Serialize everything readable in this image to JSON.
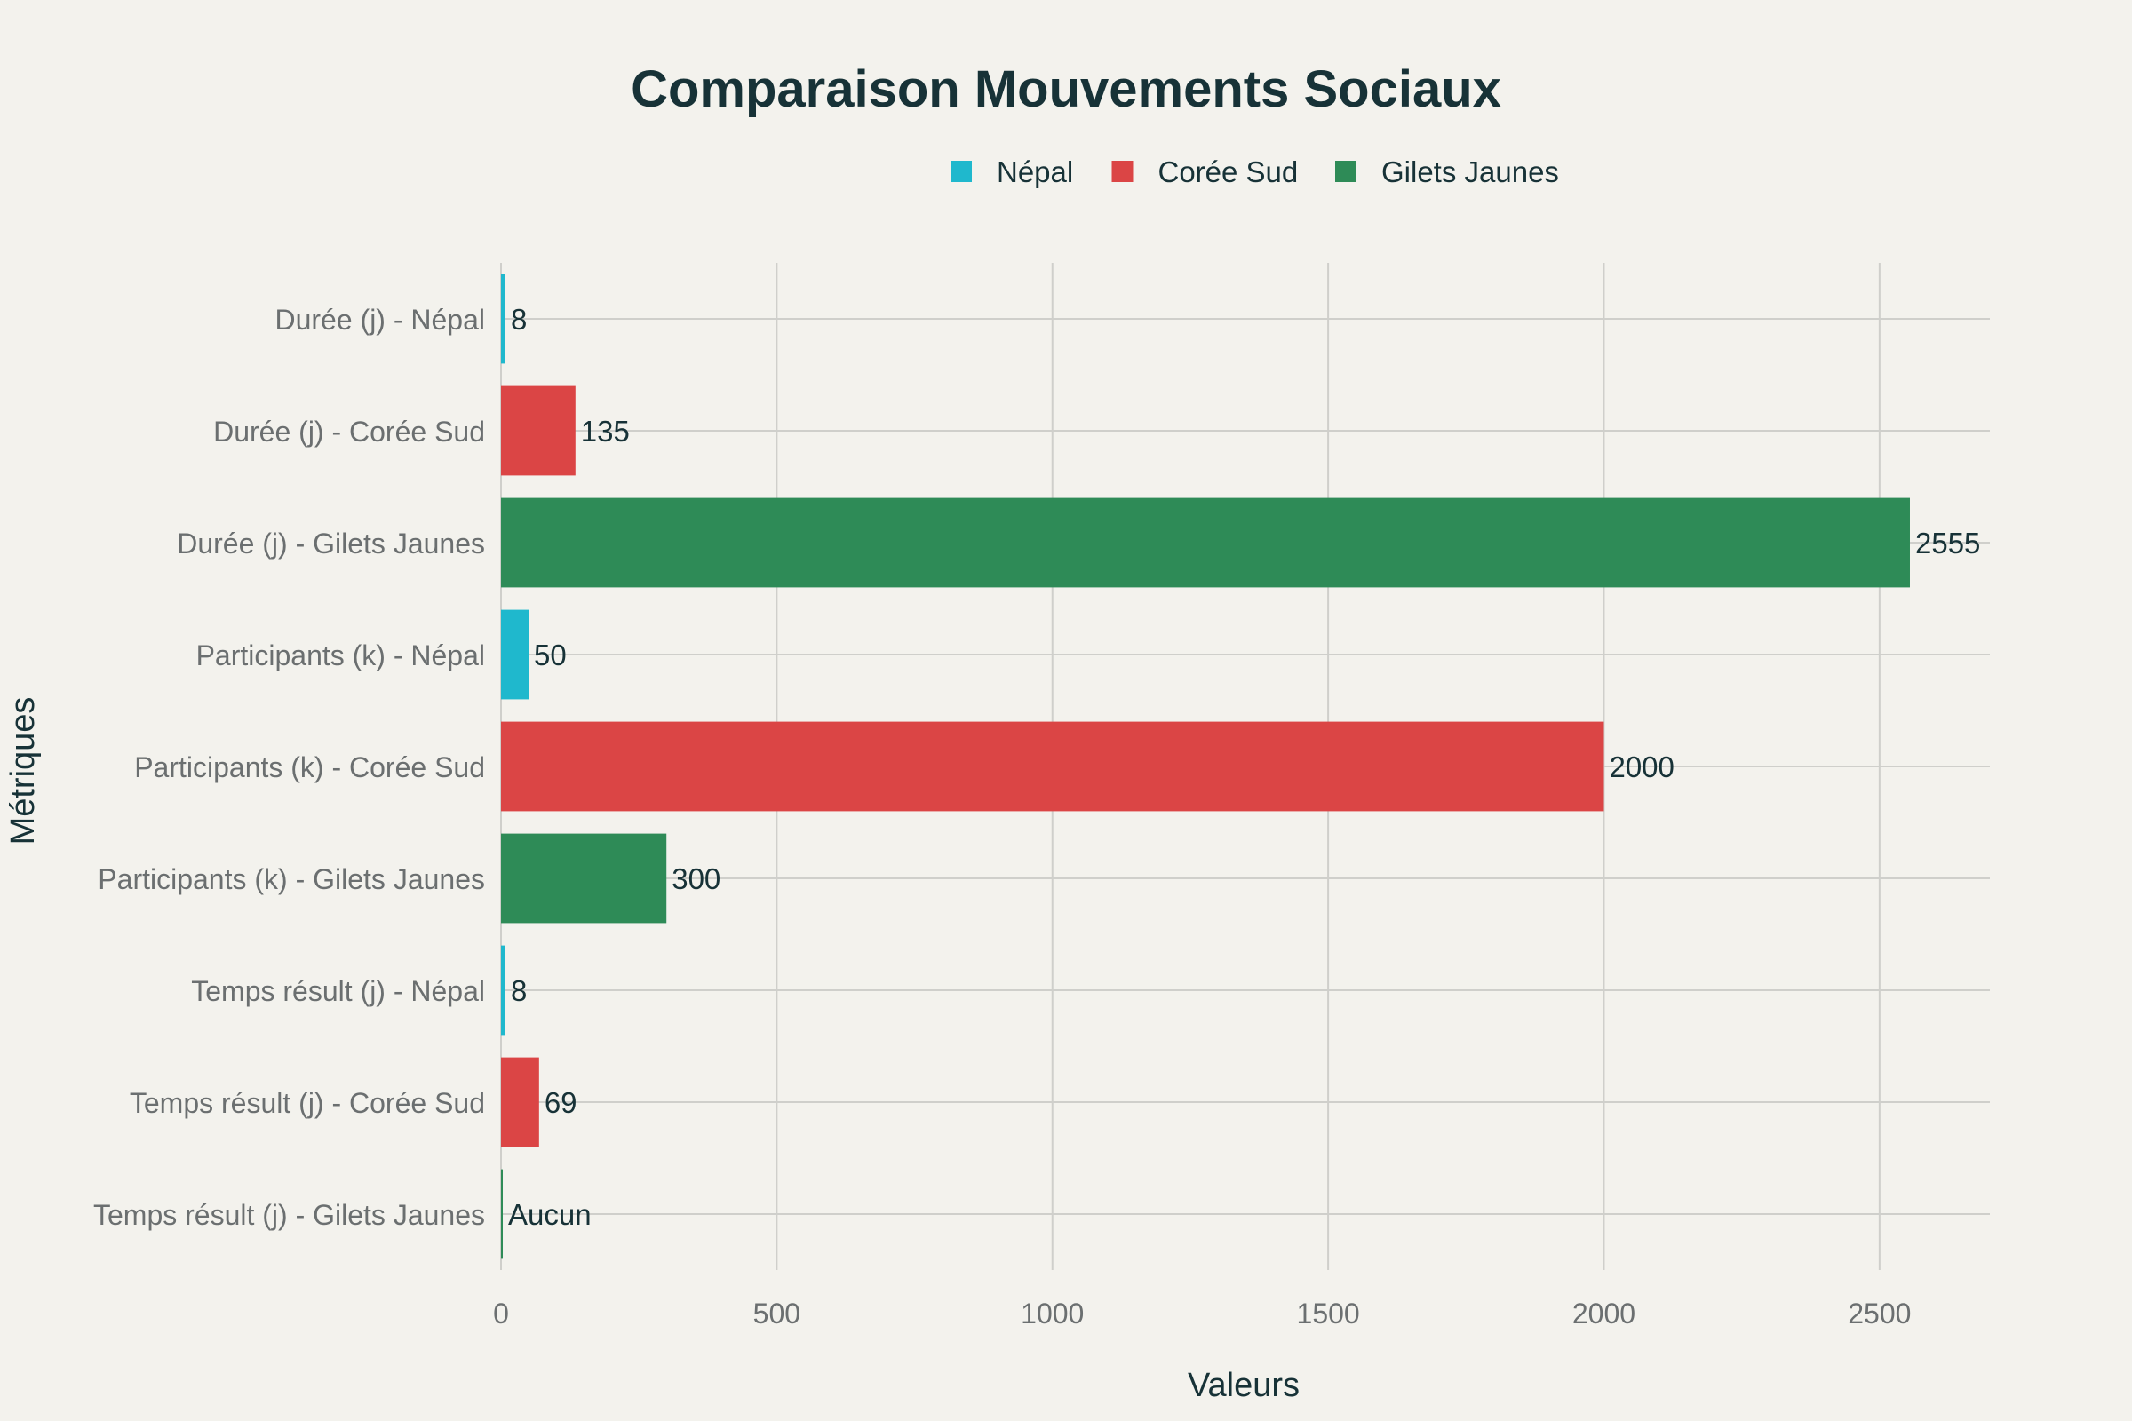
{
  "chart_data": {
    "type": "bar",
    "orientation": "horizontal",
    "title": "Comparaison Mouvements Sociaux",
    "xlabel": "Valeurs",
    "ylabel": "Métriques",
    "xlim": [
      0,
      2700
    ],
    "x_ticks": [
      0,
      500,
      1000,
      1500,
      2000,
      2500
    ],
    "grid": true,
    "legend_position": "top",
    "legend": [
      {
        "name": "Népal",
        "color": "#1fb8cd"
      },
      {
        "name": "Corée Sud",
        "color": "#db4545"
      },
      {
        "name": "Gilets Jaunes",
        "color": "#2e8b57"
      }
    ],
    "bars": [
      {
        "category": "Durée (j) - Népal",
        "series": "Népal",
        "value": 8,
        "label": "8"
      },
      {
        "category": "Durée (j) - Corée Sud",
        "series": "Corée Sud",
        "value": 135,
        "label": "135"
      },
      {
        "category": "Durée (j) - Gilets Jaunes",
        "series": "Gilets Jaunes",
        "value": 2555,
        "label": "2555"
      },
      {
        "category": "Participants (k) - Népal",
        "series": "Népal",
        "value": 50,
        "label": "50"
      },
      {
        "category": "Participants (k) - Corée Sud",
        "series": "Corée Sud",
        "value": 2000,
        "label": "2000"
      },
      {
        "category": "Participants (k) - Gilets Jaunes",
        "series": "Gilets Jaunes",
        "value": 300,
        "label": "300"
      },
      {
        "category": "Temps résult (j) - Népal",
        "series": "Népal",
        "value": 8,
        "label": "8"
      },
      {
        "category": "Temps résult (j) - Corée Sud",
        "series": "Corée Sud",
        "value": 69,
        "label": "69"
      },
      {
        "category": "Temps résult (j) - Gilets Jaunes",
        "series": "Gilets Jaunes",
        "value": 0,
        "label": "Aucun"
      }
    ]
  }
}
